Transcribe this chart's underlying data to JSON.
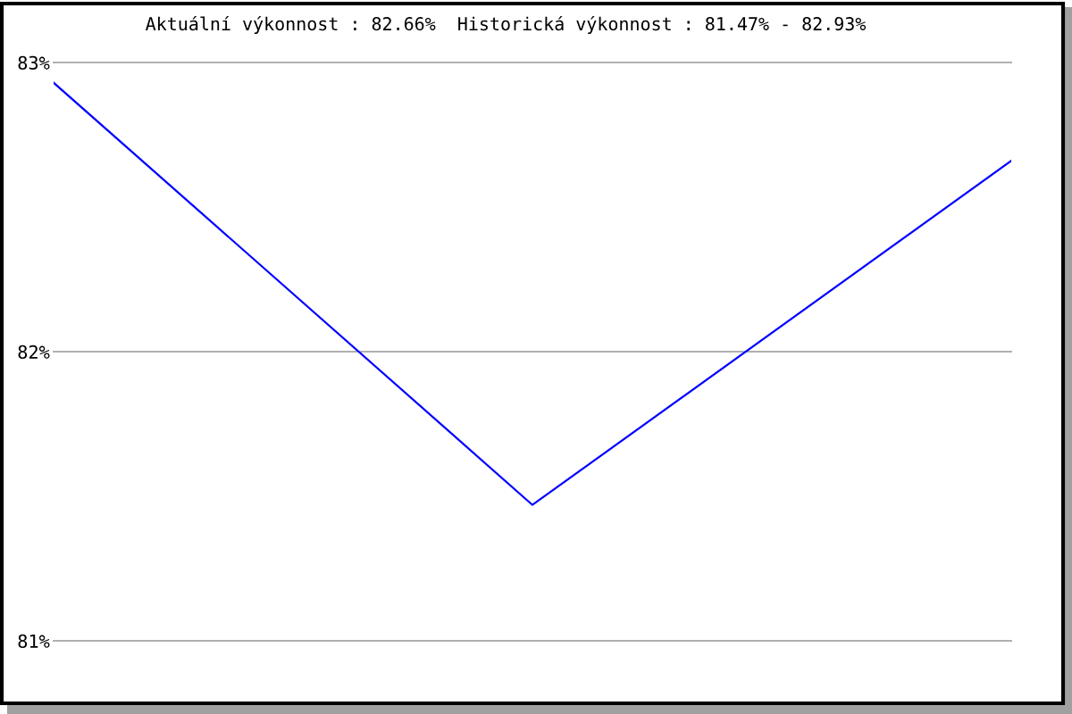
{
  "chart_data": {
    "type": "line",
    "title": "Aktuální výkonnost : 82.66%  Historická výkonnost : 81.47% - 82.93%",
    "categories": [
      null,
      null,
      null
    ],
    "series": [
      {
        "color": "#0000ff",
        "values": [
          82.93,
          81.47,
          82.66
        ]
      }
    ],
    "ylim": [
      81,
      83
    ],
    "yticks": [
      {
        "value": 81,
        "label": "81%"
      },
      {
        "value": 82,
        "label": "82%"
      },
      {
        "value": 83,
        "label": "83%"
      }
    ],
    "grid": "y",
    "tick_labels": "y",
    "marker": "none",
    "line_style": "solid"
  }
}
